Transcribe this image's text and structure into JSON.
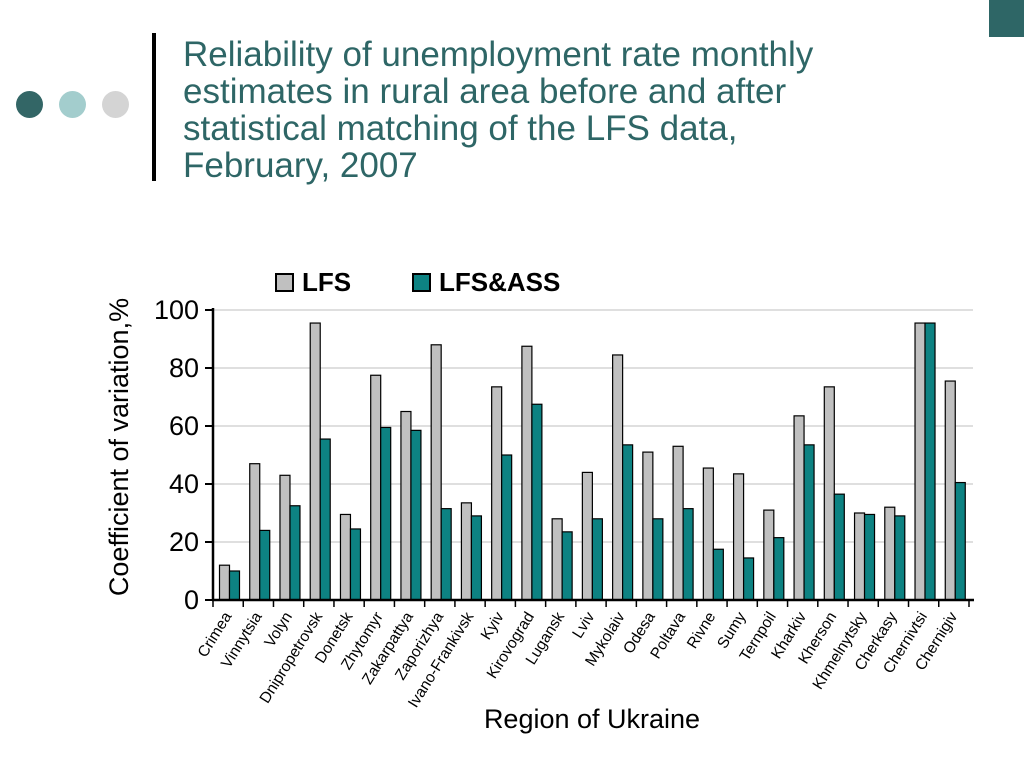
{
  "slide": {
    "title": "Reliability of unemployment rate monthly estimates in rural area before and after statistical matching of the LFS data, February, 2007",
    "title_lines": [
      "Reliability of unemployment rate monthly",
      "estimates in rural area before and after",
      "statistical matching of the LFS data,",
      "February, 2007"
    ],
    "accent_colors": {
      "dark_teal": "#2e6666",
      "light_teal": "#a3cdcd",
      "light_gray": "#d4d4d4"
    }
  },
  "chart_data": {
    "type": "bar",
    "title": "",
    "xlabel": "Region of Ukraine",
    "ylabel": "Coefficient of variation,%",
    "ylim": [
      0,
      100
    ],
    "y_ticks": [
      0,
      20,
      40,
      60,
      80,
      100
    ],
    "grid": true,
    "legend_position": "top",
    "bar_outline_color": "#000000",
    "categories": [
      "Crimea",
      "Vinnytsia",
      "Volyn",
      "Dnipropetrovsk",
      "Donetsk",
      "Zhytomyr",
      "Zakarpattya",
      "Zaporizhya",
      "Ivano-Frankivsk",
      "Kyiv",
      "Kirovograd",
      "Lugansk",
      "Lviv",
      "Mykolaiv",
      "Odesa",
      "Poltava",
      "Rivne",
      "Sumy",
      "Ternpoil",
      "Kharkiv",
      "Kherson",
      "Khmelnytsky",
      "Cherkasy",
      "Chernivtsi",
      "Chernigiv"
    ],
    "series": [
      {
        "name": "LFS",
        "color": "#c0c0c0",
        "values": [
          12,
          47,
          43,
          95.5,
          29.5,
          77.5,
          65,
          88,
          33.5,
          73.5,
          87.5,
          28,
          44,
          84.5,
          51,
          53,
          45.5,
          43.5,
          31,
          63.5,
          73.5,
          30,
          32,
          95.5,
          75.5
        ]
      },
      {
        "name": "LFS&ASS",
        "color": "#0d8282",
        "values": [
          10,
          24,
          32.5,
          55.5,
          24.5,
          59.5,
          58.5,
          31.5,
          29,
          50,
          67.5,
          23.5,
          28,
          53.5,
          28,
          31.5,
          17.5,
          14.5,
          21.5,
          53.5,
          36.5,
          29.5,
          29,
          95.5,
          40.5
        ]
      }
    ]
  }
}
